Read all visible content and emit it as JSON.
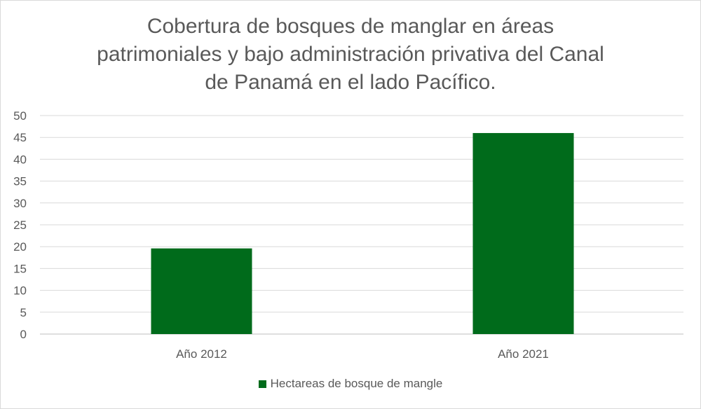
{
  "chart_data": {
    "type": "bar",
    "title": "Cobertura de bosques de manglar en áreas patrimoniales y bajo administración privativa del Canal de Panamá en el lado Pacífico.",
    "title_lines": [
      "Cobertura de bosques de manglar en áreas",
      "patrimoniales y bajo administración privativa del Canal",
      "de Panamá en el lado Pacífico."
    ],
    "categories": [
      "Año 2012",
      "Año 2021"
    ],
    "series": [
      {
        "name": "Hectareas de bosque de mangle",
        "values": [
          19.6,
          46
        ],
        "color": "#006b1b"
      }
    ],
    "xlabel": "",
    "ylabel": "",
    "ylim": [
      0,
      50
    ],
    "yticks": [
      0,
      5,
      10,
      15,
      20,
      25,
      30,
      35,
      40,
      45,
      50
    ],
    "grid": true,
    "legend_position": "bottom"
  }
}
